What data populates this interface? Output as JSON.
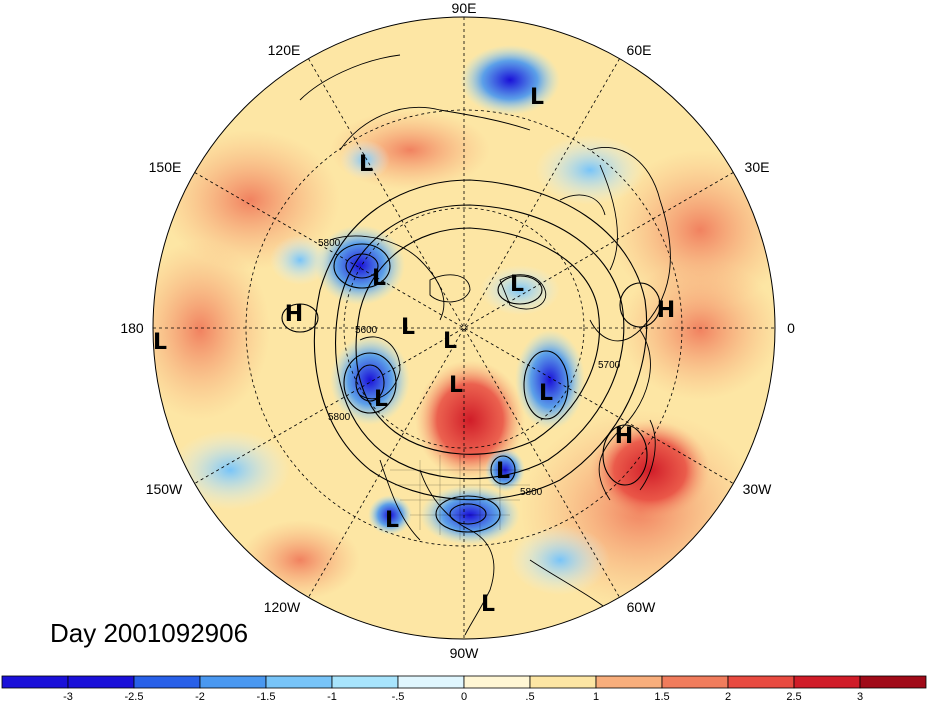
{
  "title": "Day 2001092906",
  "longitude_labels": [
    {
      "id": "90E",
      "text": "90E"
    },
    {
      "id": "60E",
      "text": "60E"
    },
    {
      "id": "30E",
      "text": "30E"
    },
    {
      "id": "0",
      "text": "0"
    },
    {
      "id": "30W",
      "text": "30W"
    },
    {
      "id": "60W",
      "text": "60W"
    },
    {
      "id": "90W",
      "text": "90W"
    },
    {
      "id": "120W",
      "text": "120W"
    },
    {
      "id": "150W",
      "text": "150W"
    },
    {
      "id": "180",
      "text": "180"
    },
    {
      "id": "150E",
      "text": "150E"
    },
    {
      "id": "120E",
      "text": "120E"
    }
  ],
  "pressure_centers": [
    {
      "type": "L",
      "text": "L"
    },
    {
      "type": "L",
      "text": "L"
    },
    {
      "type": "L",
      "text": "L"
    },
    {
      "type": "L",
      "text": "L"
    },
    {
      "type": "L",
      "text": "L"
    },
    {
      "type": "L",
      "text": "L"
    },
    {
      "type": "L",
      "text": "L"
    },
    {
      "type": "L",
      "text": "L"
    },
    {
      "type": "L",
      "text": "L"
    },
    {
      "type": "L",
      "text": "L"
    },
    {
      "type": "L",
      "text": "L"
    },
    {
      "type": "L",
      "text": "L"
    },
    {
      "type": "L",
      "text": "L"
    },
    {
      "type": "H",
      "text": "H"
    },
    {
      "type": "H",
      "text": "H"
    },
    {
      "type": "H",
      "text": "H"
    }
  ],
  "contour_labels": [
    "5800",
    "5600",
    "5800",
    "5700",
    "5800"
  ],
  "colorbar": {
    "labels": [
      "-3",
      "-2.5",
      "-2",
      "-1.5",
      "-1",
      "-.5",
      "0",
      ".5",
      "1",
      "1.5",
      "2",
      "2.5",
      "3"
    ],
    "colors": [
      "#1a10d8",
      "#2860e8",
      "#4a98f0",
      "#78c4f8",
      "#a8e4fc",
      "#e0f6fe",
      "#fff6d4",
      "#fde6a4",
      "#f8ae7c",
      "#f07c5c",
      "#e84a40",
      "#d01c28",
      "#a00a18"
    ]
  }
}
